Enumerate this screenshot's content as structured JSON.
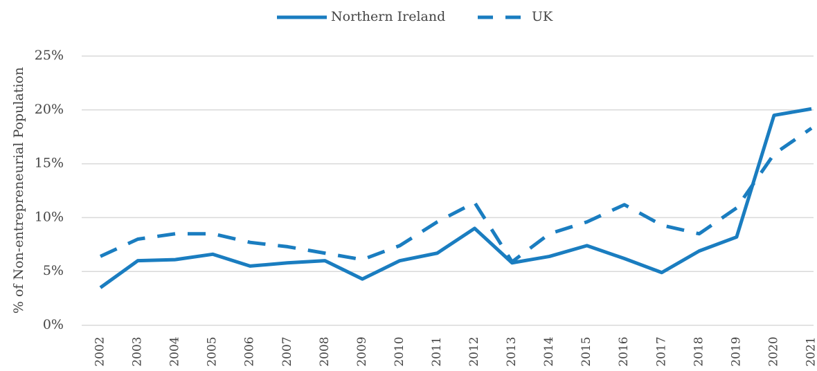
{
  "chart_data": {
    "type": "line",
    "y_label": "% of Non-entrepreneurial Population",
    "categories": [
      "2002",
      "2003",
      "2004",
      "2005",
      "2006",
      "2007",
      "2008",
      "2009",
      "2010",
      "2011",
      "2012",
      "2013",
      "2014",
      "2015",
      "2016",
      "2017",
      "2018",
      "2019",
      "2020",
      "2021"
    ],
    "series": [
      {
        "name": "Northern Ireland",
        "color": "#1a7dc0",
        "dash": false,
        "values": [
          3.5,
          6.0,
          6.1,
          6.6,
          5.5,
          5.8,
          6.0,
          4.3,
          6.0,
          6.7,
          9.0,
          5.8,
          6.4,
          7.4,
          6.2,
          4.9,
          6.9,
          8.2,
          19.5,
          20.1
        ]
      },
      {
        "name": "UK",
        "color": "#1a7dc0",
        "dash": true,
        "values": [
          6.4,
          8.0,
          8.5,
          8.5,
          7.7,
          7.3,
          6.7,
          6.1,
          7.4,
          9.6,
          11.4,
          5.9,
          8.5,
          9.6,
          11.2,
          9.3,
          8.5,
          10.9,
          15.9,
          18.3
        ]
      }
    ],
    "ylim": [
      0,
      25
    ],
    "yticks": [
      {
        "value": 0,
        "label": "0%"
      },
      {
        "value": 5,
        "label": "5%"
      },
      {
        "value": 10,
        "label": "10%"
      },
      {
        "value": 15,
        "label": "15%"
      },
      {
        "value": 20,
        "label": "20%"
      },
      {
        "value": 25,
        "label": "25%"
      }
    ],
    "grid": true,
    "legend": "top"
  }
}
